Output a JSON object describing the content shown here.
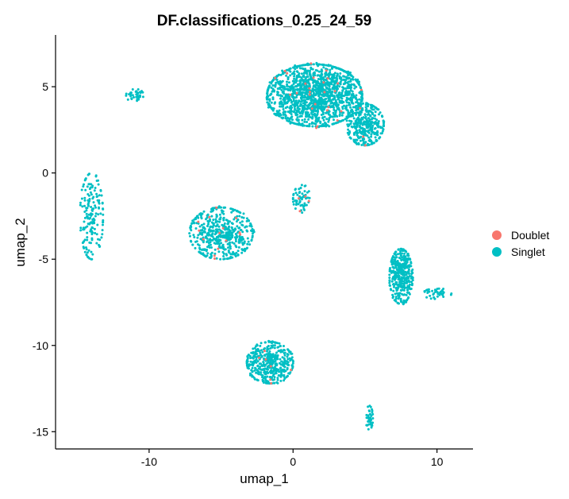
{
  "chart_data": {
    "type": "scatter",
    "title": "DF.classifications_0.25_24_59",
    "xlabel": "umap_1",
    "ylabel": "umap_2",
    "xlim": [
      -16.5,
      12.5
    ],
    "ylim": [
      -16.0,
      8.0
    ],
    "xticks": [
      -10,
      0,
      10
    ],
    "xtick_labels": [
      "-10",
      "0",
      "10"
    ],
    "yticks": [
      -15,
      -10,
      -5,
      0,
      5
    ],
    "ytick_labels": [
      "-15",
      "-10",
      "-5",
      "0",
      "5"
    ],
    "grid": false,
    "legend_position": "right",
    "series": [
      {
        "name": "Doublet",
        "color": "#F8766D"
      },
      {
        "name": "Singlet",
        "color": "#00BFC4"
      }
    ],
    "clusters": [
      {
        "label": "top-large",
        "center": [
          1.5,
          4.5
        ],
        "spread": [
          3.3,
          1.8
        ],
        "count": 1500,
        "doublet_fraction": 0.015
      },
      {
        "label": "top-right-dense",
        "center": [
          5.0,
          2.8
        ],
        "spread": [
          1.3,
          1.2
        ],
        "count": 350,
        "doublet_fraction": 0.01
      },
      {
        "label": "bridge",
        "center": [
          0.6,
          -1.5
        ],
        "spread": [
          0.6,
          0.8
        ],
        "count": 60,
        "doublet_fraction": 0.05
      },
      {
        "label": "small-top-left",
        "center": [
          -11.0,
          4.5
        ],
        "spread": [
          0.6,
          0.4
        ],
        "count": 40,
        "doublet_fraction": 0.0
      },
      {
        "label": "left-strip",
        "center": [
          -14.0,
          -2.5
        ],
        "spread": [
          0.8,
          2.5
        ],
        "count": 170,
        "doublet_fraction": 0.0
      },
      {
        "label": "middle-left",
        "center": [
          -5.0,
          -3.5
        ],
        "spread": [
          2.2,
          1.5
        ],
        "count": 500,
        "doublet_fraction": 0.02
      },
      {
        "label": "right-elongated",
        "center": [
          7.5,
          -6.0
        ],
        "spread": [
          0.8,
          1.6
        ],
        "count": 380,
        "doublet_fraction": 0.0
      },
      {
        "label": "right-tail",
        "center": [
          10.0,
          -7.0
        ],
        "spread": [
          1.0,
          0.3
        ],
        "count": 40,
        "doublet_fraction": 0.0
      },
      {
        "label": "bottom-middle",
        "center": [
          -1.6,
          -11.0
        ],
        "spread": [
          1.6,
          1.2
        ],
        "count": 430,
        "doublet_fraction": 0.02
      },
      {
        "label": "bottom-small",
        "center": [
          5.3,
          -14.2
        ],
        "spread": [
          0.25,
          0.7
        ],
        "count": 40,
        "doublet_fraction": 0.0
      }
    ]
  }
}
